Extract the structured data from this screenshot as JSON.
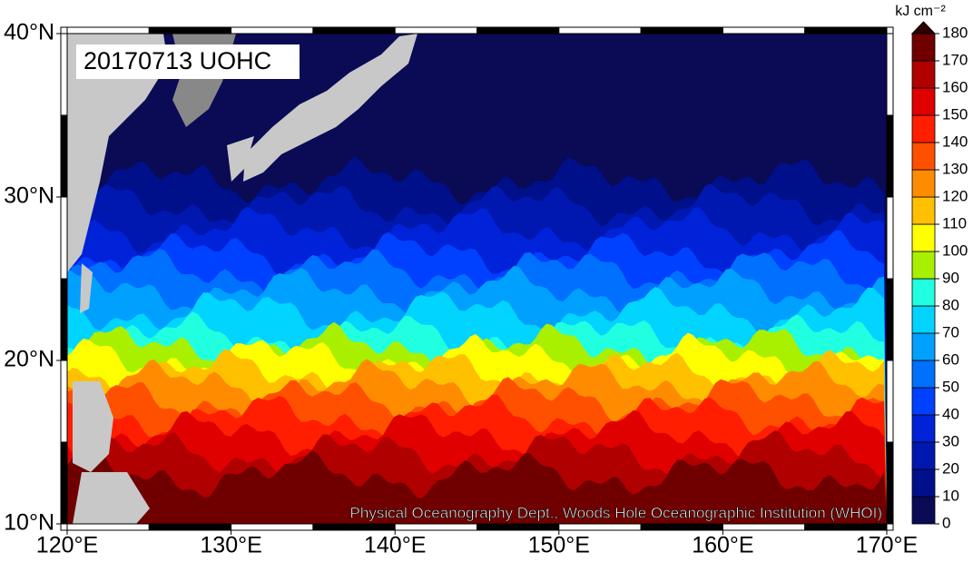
{
  "map": {
    "label": "20170713 UOHC",
    "credit": "Physical Oceanography Dept., Woods Hole Oceanographic Institution (WHOI)",
    "xlim": [
      120,
      170
    ],
    "ylim": [
      10,
      40
    ],
    "xticks": [
      {
        "value": 120,
        "label": "120°E"
      },
      {
        "value": 130,
        "label": "130°E"
      },
      {
        "value": 140,
        "label": "140°E"
      },
      {
        "value": 150,
        "label": "150°E"
      },
      {
        "value": 160,
        "label": "160°E"
      },
      {
        "value": 170,
        "label": "170°E"
      }
    ],
    "yticks": [
      {
        "value": 10,
        "label": "10°N"
      },
      {
        "value": 20,
        "label": "20°N"
      },
      {
        "value": 30,
        "label": "30°N"
      },
      {
        "value": 40,
        "label": "40°N"
      }
    ]
  },
  "colorbar": {
    "unit": "kJ cm⁻²",
    "lim": [
      0,
      180
    ],
    "ticks": [
      0,
      10,
      20,
      30,
      40,
      50,
      60,
      70,
      80,
      90,
      100,
      110,
      120,
      130,
      140,
      150,
      160,
      170,
      180
    ],
    "colors": [
      "#0a0a55",
      "#00108a",
      "#0018b0",
      "#0022d8",
      "#0040ff",
      "#0070ff",
      "#00a0ff",
      "#00d4ff",
      "#20ffe0",
      "#a8f000",
      "#ffff00",
      "#ffc000",
      "#ff8c00",
      "#ff5000",
      "#ff1e00",
      "#e00000",
      "#b00000",
      "#700000",
      "#300000"
    ]
  }
}
